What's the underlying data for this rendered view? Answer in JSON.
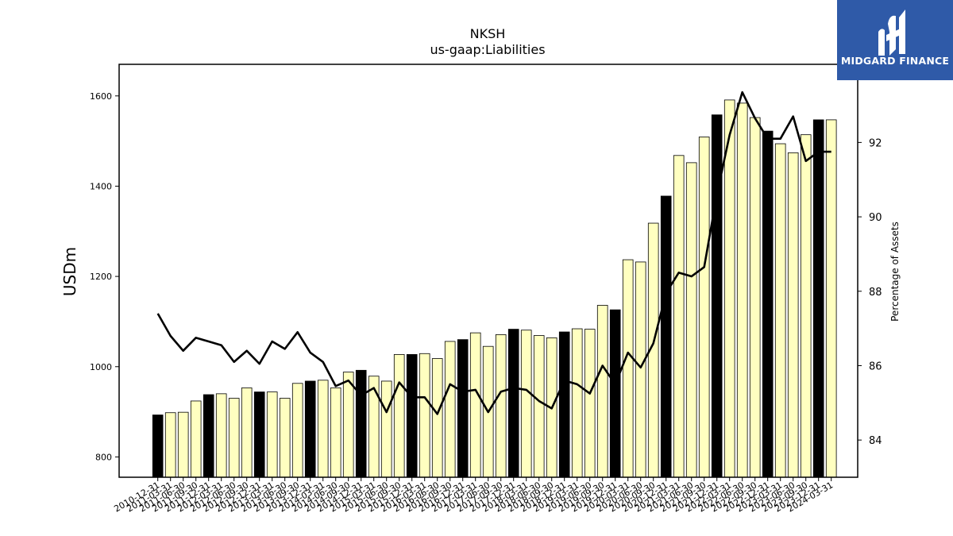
{
  "chart_data": {
    "type": "bar",
    "title": "NKSH",
    "subtitle": "us-gaap:Liabilities",
    "ylabel": "USDm",
    "y2label": "Percentage of Assets",
    "ylim": [
      755,
      1670
    ],
    "y2lim": [
      83.0,
      94.1
    ],
    "yticks": [
      800,
      1000,
      1200,
      1400,
      1600
    ],
    "y2ticks": [
      84,
      86,
      88,
      90,
      92
    ],
    "categories": [
      "2010-12-31",
      "2011-03-31",
      "2011-06-30",
      "2011-09-30",
      "2011-12-31",
      "2012-03-31",
      "2012-06-30",
      "2012-09-30",
      "2012-12-31",
      "2013-03-31",
      "2013-06-30",
      "2013-09-30",
      "2013-12-31",
      "2014-03-31",
      "2014-06-30",
      "2014-09-30",
      "2014-12-31",
      "2015-03-31",
      "2015-06-30",
      "2015-09-30",
      "2015-12-31",
      "2016-03-31",
      "2016-06-30",
      "2016-09-30",
      "2016-12-31",
      "2017-03-31",
      "2017-06-30",
      "2017-09-30",
      "2017-12-31",
      "2018-03-31",
      "2018-06-30",
      "2018-09-30",
      "2018-12-31",
      "2019-03-31",
      "2019-06-30",
      "2019-09-30",
      "2019-12-31",
      "2020-03-31",
      "2020-06-30",
      "2020-09-30",
      "2020-12-31",
      "2021-03-31",
      "2021-06-30",
      "2021-09-30",
      "2021-12-31",
      "2022-03-31",
      "2022-06-30",
      "2022-09-30",
      "2022-12-31",
      "2023-03-31",
      "2023-06-30",
      "2023-09-30",
      "2023-12-31",
      "2024-03-31"
    ],
    "series": [
      {
        "type": "bar",
        "axis": "left",
        "values": [
          893,
          898,
          899,
          924,
          938,
          940,
          930,
          953,
          944,
          944,
          930,
          963,
          968,
          970,
          953,
          988,
          992,
          979,
          968,
          1027,
          1027,
          1029,
          1018,
          1056,
          1060,
          1075,
          1045,
          1071,
          1083,
          1081,
          1069,
          1064,
          1077,
          1084,
          1083,
          1136,
          1126,
          1237,
          1232,
          1318,
          1378,
          1468,
          1452,
          1509,
          1558,
          1591,
          1584,
          1552,
          1522,
          1494,
          1474,
          1514,
          1547,
          1547
        ],
        "year_end_color": "#000000",
        "quarter_color": "#ffffc0"
      },
      {
        "type": "line",
        "axis": "right",
        "color": "#000000",
        "values": [
          87.4,
          86.8,
          86.4,
          86.75,
          86.65,
          86.55,
          86.1,
          86.4,
          86.05,
          86.65,
          86.45,
          86.9,
          86.35,
          86.1,
          85.45,
          85.6,
          85.2,
          85.4,
          84.75,
          85.55,
          85.15,
          85.15,
          84.7,
          85.5,
          85.3,
          85.35,
          84.75,
          85.3,
          85.4,
          85.35,
          85.05,
          84.85,
          85.6,
          85.5,
          85.25,
          86.0,
          85.5,
          86.35,
          85.95,
          86.6,
          87.95,
          88.5,
          88.4,
          88.65,
          90.6,
          92.2,
          93.35,
          92.65,
          92.1,
          92.1,
          92.7,
          91.5,
          91.75,
          91.75
        ]
      }
    ],
    "grid": false,
    "legend": "none"
  },
  "logo": {
    "text": "MIDGARD FINANCE",
    "bg_color": "#2f5aa8"
  }
}
